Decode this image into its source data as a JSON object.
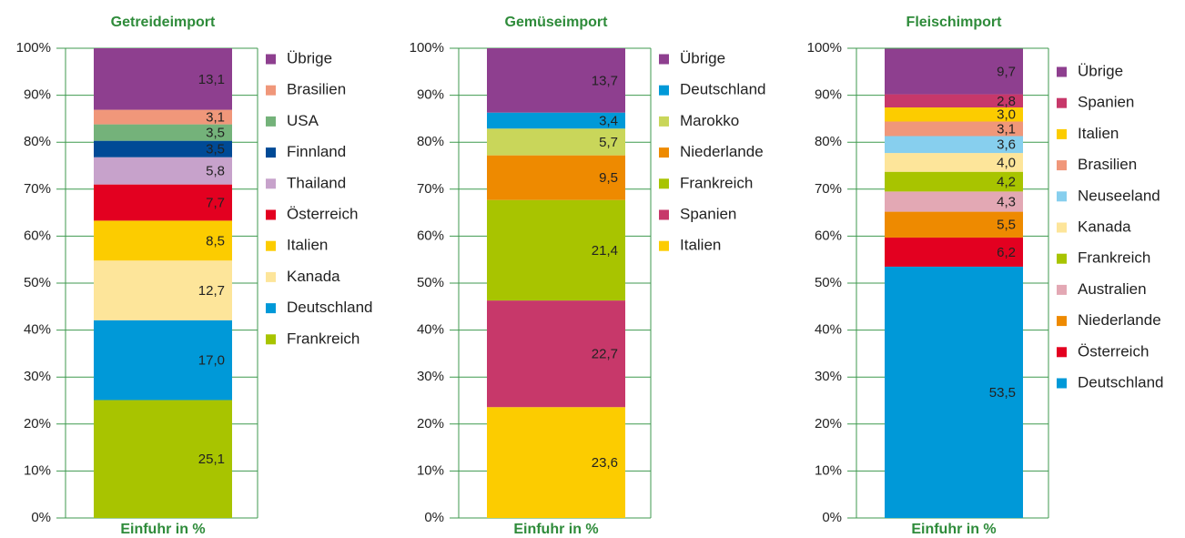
{
  "chart_data": [
    {
      "type": "bar",
      "title": "Getreideimport",
      "x_label": "Einfuhr in %",
      "categories": [
        null
      ],
      "ylim": [
        0,
        100
      ],
      "yticks": [
        {
          "value": 0,
          "label": "0%"
        },
        {
          "value": 10,
          "label": "10%"
        },
        {
          "value": 20,
          "label": "20%"
        },
        {
          "value": 30,
          "label": "30%"
        },
        {
          "value": 40,
          "label": "40%"
        },
        {
          "value": 50,
          "label": "50%"
        },
        {
          "value": 60,
          "label": "60%"
        },
        {
          "value": 70,
          "label": "70%"
        },
        {
          "value": 80,
          "label": "80%"
        },
        {
          "value": 90,
          "label": "90%"
        },
        {
          "value": 100,
          "label": "100%"
        }
      ],
      "series": [
        {
          "name": "Frankreich",
          "color": "#a8c400",
          "values": [
            25.1
          ],
          "value_labels": [
            "25,1"
          ]
        },
        {
          "name": "Deutschland",
          "color": "#0099d8",
          "values": [
            17.0
          ],
          "value_labels": [
            "17,0"
          ]
        },
        {
          "name": "Kanada",
          "color": "#fde59a",
          "values": [
            12.7
          ],
          "value_labels": [
            "12,7"
          ]
        },
        {
          "name": "Italien",
          "color": "#fccc00",
          "values": [
            8.5
          ],
          "value_labels": [
            "8,5"
          ]
        },
        {
          "name": "Österreich",
          "color": "#e30020",
          "values": [
            7.7
          ],
          "value_labels": [
            "7,7"
          ]
        },
        {
          "name": "Thailand",
          "color": "#c7a2cb",
          "values": [
            5.8
          ],
          "value_labels": [
            "5,8"
          ]
        },
        {
          "name": "Finnland",
          "color": "#004a96",
          "values": [
            3.5
          ],
          "value_labels": [
            "3,5"
          ]
        },
        {
          "name": "USA",
          "color": "#74b27a",
          "values": [
            3.5
          ],
          "value_labels": [
            "3,5"
          ]
        },
        {
          "name": "Brasilien",
          "color": "#f0977a",
          "values": [
            3.1
          ],
          "value_labels": [
            "3,1"
          ]
        },
        {
          "name": "Übrige",
          "color": "#8e3f8f",
          "values": [
            13.1
          ],
          "value_labels": [
            "13,1"
          ]
        }
      ]
    },
    {
      "type": "bar",
      "title": "Gemüseimport",
      "x_label": "Einfuhr in %",
      "categories": [
        null
      ],
      "ylim": [
        0,
        100
      ],
      "yticks": [
        {
          "value": 0,
          "label": "0%"
        },
        {
          "value": 10,
          "label": "10%"
        },
        {
          "value": 20,
          "label": "20%"
        },
        {
          "value": 30,
          "label": "30%"
        },
        {
          "value": 40,
          "label": "40%"
        },
        {
          "value": 50,
          "label": "50%"
        },
        {
          "value": 60,
          "label": "60%"
        },
        {
          "value": 70,
          "label": "70%"
        },
        {
          "value": 80,
          "label": "80%"
        },
        {
          "value": 90,
          "label": "90%"
        },
        {
          "value": 100,
          "label": "100%"
        }
      ],
      "series": [
        {
          "name": "Italien",
          "color": "#fccc00",
          "values": [
            23.6
          ],
          "value_labels": [
            "23,6"
          ]
        },
        {
          "name": "Spanien",
          "color": "#c7386a",
          "values": [
            22.7
          ],
          "value_labels": [
            "22,7"
          ]
        },
        {
          "name": "Frankreich",
          "color": "#a8c400",
          "values": [
            21.4
          ],
          "value_labels": [
            "21,4"
          ]
        },
        {
          "name": "Niederlande",
          "color": "#ee8a00",
          "values": [
            9.5
          ],
          "value_labels": [
            "9,5"
          ]
        },
        {
          "name": "Marokko",
          "color": "#c9d65a",
          "values": [
            5.7
          ],
          "value_labels": [
            "5,7"
          ]
        },
        {
          "name": "Deutschland",
          "color": "#0099d8",
          "values": [
            3.4
          ],
          "value_labels": [
            "3,4"
          ]
        },
        {
          "name": "Übrige",
          "color": "#8e3f8f",
          "values": [
            13.7
          ],
          "value_labels": [
            "13,7"
          ]
        }
      ]
    },
    {
      "type": "bar",
      "title": "Fleischimport",
      "x_label": "Einfuhr in %",
      "categories": [
        null
      ],
      "ylim": [
        0,
        100
      ],
      "yticks": [
        {
          "value": 0,
          "label": "0%"
        },
        {
          "value": 10,
          "label": "10%"
        },
        {
          "value": 20,
          "label": "20%"
        },
        {
          "value": 30,
          "label": "30%"
        },
        {
          "value": 40,
          "label": "40%"
        },
        {
          "value": 50,
          "label": "50%"
        },
        {
          "value": 60,
          "label": "60%"
        },
        {
          "value": 70,
          "label": "70%"
        },
        {
          "value": 80,
          "label": "80%"
        },
        {
          "value": 90,
          "label": "90%"
        },
        {
          "value": 100,
          "label": "100%"
        }
      ],
      "series": [
        {
          "name": "Deutschland",
          "color": "#0099d8",
          "values": [
            53.5
          ],
          "value_labels": [
            "53,5"
          ]
        },
        {
          "name": "Österreich",
          "color": "#e30020",
          "values": [
            6.2
          ],
          "value_labels": [
            "6,2"
          ]
        },
        {
          "name": "Niederlande",
          "color": "#ee8a00",
          "values": [
            5.5
          ],
          "value_labels": [
            "5,5"
          ]
        },
        {
          "name": "Australien",
          "color": "#e3a8b4",
          "values": [
            4.3
          ],
          "value_labels": [
            "4,3"
          ]
        },
        {
          "name": "Frankreich",
          "color": "#a8c400",
          "values": [
            4.2
          ],
          "value_labels": [
            "4,2"
          ]
        },
        {
          "name": "Kanada",
          "color": "#fde59a",
          "values": [
            4.0
          ],
          "value_labels": [
            "4,0"
          ]
        },
        {
          "name": "Neuseeland",
          "color": "#87cfee",
          "values": [
            3.6
          ],
          "value_labels": [
            "3,6"
          ]
        },
        {
          "name": "Brasilien",
          "color": "#f0977a",
          "values": [
            3.1
          ],
          "value_labels": [
            "3,1"
          ]
        },
        {
          "name": "Italien",
          "color": "#fccc00",
          "values": [
            3.0
          ],
          "value_labels": [
            "3,0"
          ]
        },
        {
          "name": "Spanien",
          "color": "#c7386a",
          "values": [
            2.8
          ],
          "value_labels": [
            "2,8"
          ]
        },
        {
          "name": "Übrige",
          "color": "#8e3f8f",
          "values": [
            9.7
          ],
          "value_labels": [
            "9,7"
          ]
        }
      ]
    }
  ]
}
